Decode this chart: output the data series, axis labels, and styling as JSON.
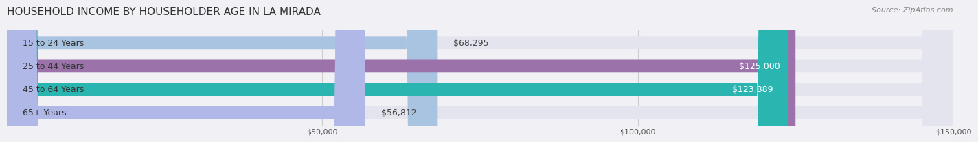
{
  "title": "HOUSEHOLD INCOME BY HOUSEHOLDER AGE IN LA MIRADA",
  "source": "Source: ZipAtlas.com",
  "categories": [
    "15 to 24 Years",
    "25 to 44 Years",
    "45 to 64 Years",
    "65+ Years"
  ],
  "values": [
    68295,
    125000,
    123889,
    56812
  ],
  "bar_colors": [
    "#a8c4e0",
    "#9b72aa",
    "#2ab5b0",
    "#b0b8e8"
  ],
  "bar_labels": [
    "$68,295",
    "$125,000",
    "$123,889",
    "$56,812"
  ],
  "label_colors": [
    "#444444",
    "#ffffff",
    "#ffffff",
    "#444444"
  ],
  "xlim": [
    0,
    150000
  ],
  "xticks": [
    50000,
    100000,
    150000
  ],
  "xtick_labels": [
    "$50,000",
    "$100,000",
    "$150,000"
  ],
  "background_color": "#f0f0f5",
  "bar_bg_color": "#e4e4ee",
  "title_fontsize": 11,
  "source_fontsize": 8,
  "label_fontsize": 9,
  "category_fontsize": 9
}
